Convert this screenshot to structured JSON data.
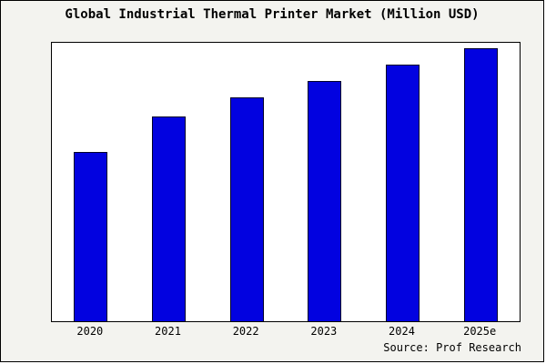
{
  "title": "Global Industrial Thermal Printer Market (Million USD)",
  "source": "Source: Prof Research",
  "colors": {
    "background": "#f3f3ef",
    "plot_background": "#ffffff",
    "bar_fill": "#0202e0",
    "bar_border": "#00002a",
    "frame_border": "#000000"
  },
  "chart_data": {
    "type": "bar",
    "title": "Global Industrial Thermal Printer Market (Million USD)",
    "categories": [
      "2020",
      "2021",
      "2022",
      "2023",
      "2024",
      "2025e"
    ],
    "values": [
      62,
      75,
      82,
      88,
      94,
      100
    ],
    "xlabel": "",
    "ylabel": "",
    "ylim": [
      0,
      102
    ],
    "grid": false,
    "legend": false,
    "source_label": "Source: Prof Research"
  }
}
